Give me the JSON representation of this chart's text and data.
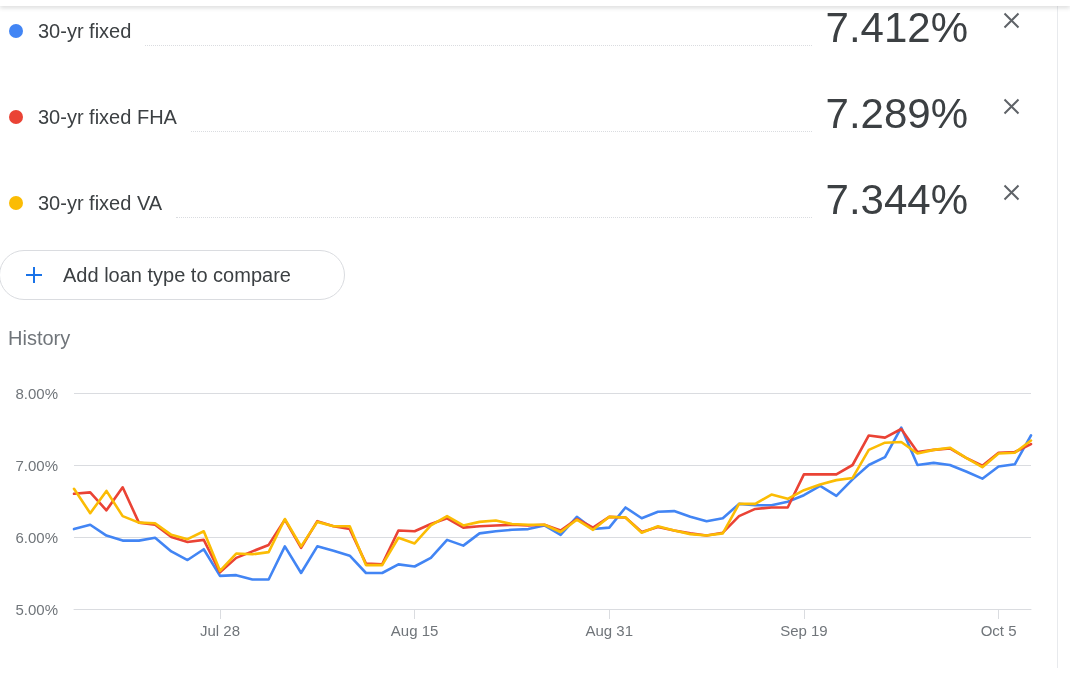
{
  "chart_data": {
    "type": "line",
    "title": "History",
    "categories": [
      null,
      null,
      null,
      null,
      null,
      null,
      null,
      null,
      null,
      "Jul 28",
      null,
      null,
      null,
      null,
      null,
      null,
      null,
      null,
      null,
      null,
      null,
      "Aug 15",
      null,
      null,
      null,
      null,
      null,
      null,
      null,
      null,
      null,
      null,
      null,
      "Aug 31",
      null,
      null,
      null,
      null,
      null,
      null,
      null,
      null,
      null,
      null,
      null,
      "Sep 19",
      null,
      null,
      null,
      null,
      null,
      null,
      null,
      null,
      null,
      null,
      null,
      "Oct 5",
      null,
      null
    ],
    "series": [
      {
        "name": "30-yr fixed",
        "color": "#4285f4",
        "values": [
          6.11,
          6.17,
          6.02,
          5.95,
          5.95,
          5.99,
          5.8,
          5.68,
          5.83,
          5.46,
          5.47,
          5.41,
          5.41,
          5.87,
          5.5,
          5.87,
          5.81,
          5.74,
          5.5,
          5.5,
          5.62,
          5.59,
          5.71,
          5.96,
          5.88,
          6.05,
          6.08,
          6.1,
          6.11,
          6.16,
          6.03,
          6.28,
          6.11,
          6.13,
          6.41,
          6.26,
          6.35,
          6.36,
          6.28,
          6.22,
          6.26,
          6.46,
          6.44,
          6.44,
          6.49,
          6.58,
          6.71,
          6.57,
          6.8,
          7.0,
          7.11,
          7.52,
          7.0,
          7.03,
          7.0,
          6.91,
          6.81,
          6.98,
          7.01,
          7.41
        ]
      },
      {
        "name": "30-yr fixed FHA",
        "color": "#ea4335",
        "values": [
          6.6,
          6.62,
          6.37,
          6.69,
          6.2,
          6.17,
          6.0,
          5.93,
          5.96,
          5.51,
          5.71,
          5.8,
          5.89,
          6.24,
          5.85,
          6.22,
          6.15,
          6.11,
          5.63,
          5.62,
          6.09,
          6.08,
          6.18,
          6.26,
          6.13,
          6.15,
          6.16,
          6.17,
          6.16,
          6.17,
          6.09,
          6.25,
          6.13,
          6.28,
          6.27,
          6.07,
          6.14,
          6.09,
          6.05,
          6.02,
          6.06,
          6.29,
          6.39,
          6.41,
          6.41,
          6.87,
          6.87,
          6.87,
          7.0,
          7.41,
          7.38,
          7.5,
          7.18,
          7.21,
          7.23,
          7.1,
          6.99,
          7.17,
          7.18,
          7.29
        ]
      },
      {
        "name": "30-yr fixed VA",
        "color": "#fbbc04",
        "values": [
          6.67,
          6.33,
          6.64,
          6.29,
          6.2,
          6.19,
          6.03,
          5.97,
          6.08,
          5.53,
          5.77,
          5.76,
          5.79,
          6.25,
          5.87,
          6.21,
          6.15,
          6.15,
          5.61,
          5.61,
          5.99,
          5.91,
          6.16,
          6.29,
          6.16,
          6.21,
          6.23,
          6.18,
          6.17,
          6.17,
          6.07,
          6.24,
          6.1,
          6.28,
          6.27,
          6.06,
          6.15,
          6.09,
          6.04,
          6.02,
          6.05,
          6.46,
          6.46,
          6.59,
          6.53,
          6.65,
          6.73,
          6.79,
          6.82,
          7.21,
          7.31,
          7.32,
          7.16,
          7.21,
          7.24,
          7.1,
          6.97,
          7.16,
          7.17,
          7.34
        ]
      }
    ],
    "ylim": [
      5,
      8
    ],
    "yticks": [
      {
        "value": 5,
        "label": "5.00%"
      },
      {
        "value": 6,
        "label": "6.00%"
      },
      {
        "value": 7,
        "label": "7.00%"
      },
      {
        "value": 8,
        "label": "8.00%"
      }
    ],
    "grid": "y",
    "legend": "top",
    "marker": "none",
    "line_style": "solid",
    "annotations": [
      "7.412%",
      "7.289%",
      "7.344%",
      "Add loan type to compare"
    ]
  }
}
